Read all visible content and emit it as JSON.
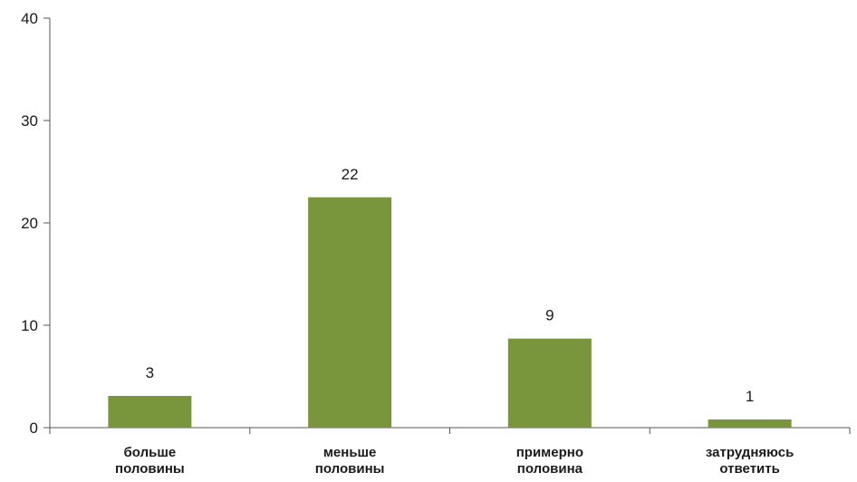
{
  "chart_data": {
    "type": "bar",
    "title": "",
    "xlabel": "",
    "ylabel": "",
    "categories": [
      [
        "больше",
        "половины"
      ],
      [
        "меньше",
        "половины"
      ],
      [
        "примерно",
        "половина"
      ],
      [
        "затрудняюсь",
        "ответить"
      ]
    ],
    "values": [
      3,
      22,
      9,
      1
    ],
    "data_labels": [
      "3",
      "22",
      "9",
      "1"
    ],
    "bar_heights": [
      3.1,
      22.5,
      8.7,
      0.8
    ],
    "ylim": [
      0,
      40
    ],
    "yticks": [
      0,
      10,
      20,
      30,
      40
    ],
    "grid": false,
    "bar_color": "#7a963c",
    "axis_color": "#555555"
  }
}
